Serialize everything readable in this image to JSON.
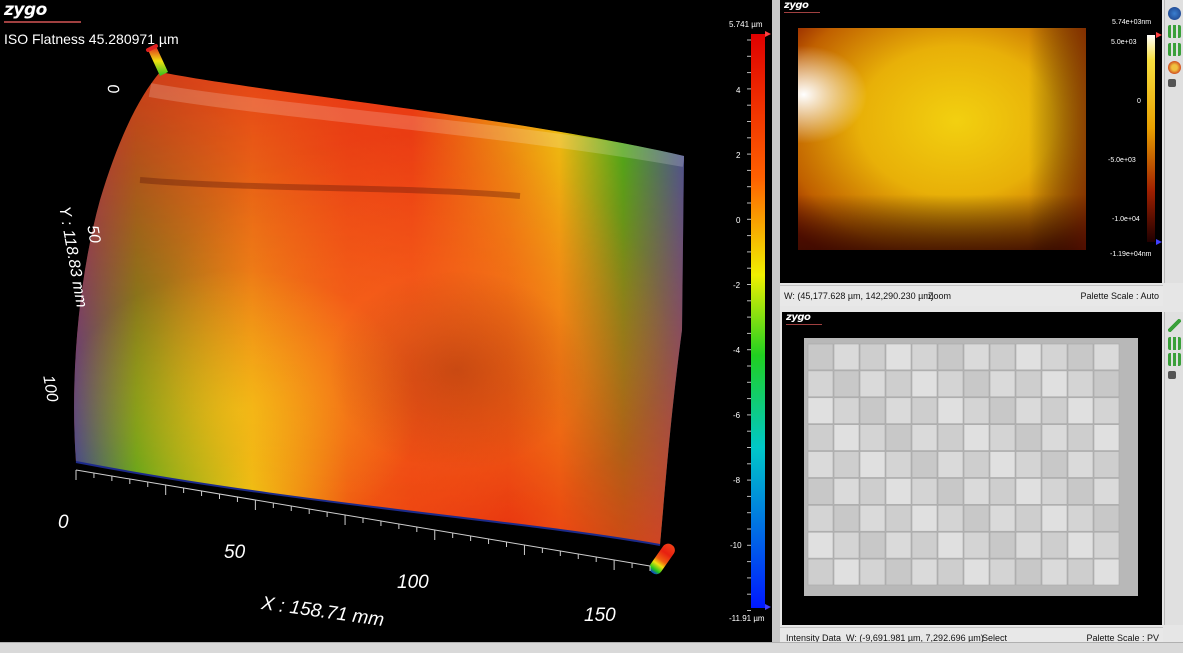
{
  "main_view": {
    "logo": "zygo",
    "title": "ISO Flatness 45.280971 µm",
    "y_axis_label": "Y : 118.83 mm",
    "x_axis_label": "X : 158.71 mm",
    "y_ticks": [
      "0",
      "50",
      "100"
    ],
    "x_ticks": [
      "0",
      "50",
      "100",
      "150"
    ],
    "colorbar": {
      "max_label": "5.741 µm",
      "min_label": "-11.91 µm",
      "ticks": [
        "4",
        "2",
        "0",
        "-2",
        "-4",
        "-6",
        "-8",
        "-10"
      ]
    }
  },
  "top_right_view": {
    "logo": "zygo",
    "colorbar": {
      "max_label": "5.74e+03nm",
      "ticks": [
        "5.0e+03",
        "0",
        "-5.0e+03",
        "-1.0e+04"
      ],
      "min_label": "-1.19e+04nm"
    },
    "status": {
      "coords": "W: (45,177.628 µm, 142,290.230 µm)",
      "mode": "Zoom",
      "palette": "Palette Scale : Auto"
    }
  },
  "bottom_right_view": {
    "logo": "zygo",
    "status": {
      "label": "Intensity Data",
      "coords": "W: (-9,691.981 µm, 7,292.696 µm)",
      "mode": "Select",
      "palette": "Palette Scale : PV"
    }
  },
  "toolbar_icons": [
    "globe-icon",
    "grid-icon",
    "grid-icon",
    "palette-icon",
    "expand-icon",
    "check-icon",
    "grid-icon",
    "grid-icon",
    "expand-icon"
  ]
}
